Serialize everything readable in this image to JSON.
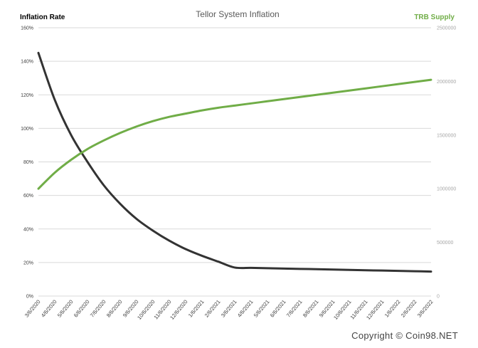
{
  "copyright": "Copyright © Coin98.NET",
  "colors": {
    "inflation": "#333333",
    "supply": "#70ad47",
    "grid": "#d9d9d9"
  },
  "chart_data": {
    "type": "line",
    "title": "Tellor System Inflation",
    "ylabel": "Inflation Rate",
    "y2label": "TRB Supply",
    "ylim": [
      0,
      160
    ],
    "y2lim": [
      0,
      2500000
    ],
    "yticks": [
      "0%",
      "20%",
      "40%",
      "60%",
      "80%",
      "100%",
      "120%",
      "140%",
      "160%"
    ],
    "y2ticks": [
      "0",
      "500000",
      "1000000",
      "1500000",
      "2000000",
      "2500000"
    ],
    "grid": true,
    "categories": [
      "3/6/2020",
      "4/6/2020",
      "5/6/2020",
      "6/6/2020",
      "7/6/2020",
      "8/6/2020",
      "9/6/2020",
      "10/6/2020",
      "11/6/2020",
      "12/6/2020",
      "1/6/2021",
      "2/6/2021",
      "3/6/2021",
      "4/6/2021",
      "5/6/2021",
      "6/6/2021",
      "7/6/2021",
      "8/6/2021",
      "9/6/2021",
      "10/6/2021",
      "11/6/2021",
      "12/6/2021",
      "1/6/2022",
      "2/6/2022",
      "3/6/2022"
    ],
    "series": [
      {
        "name": "Inflation Rate",
        "axis": "left",
        "values": [
          145,
          117,
          96,
          80,
          66,
          55,
          46,
          39,
          33,
          28,
          24,
          20.5,
          17,
          16.8,
          16.6,
          16.4,
          16.2,
          16,
          15.8,
          15.6,
          15.4,
          15.2,
          15,
          14.8,
          14.6
        ]
      },
      {
        "name": "TRB Supply",
        "axis": "right",
        "values": [
          1000000,
          1150000,
          1270000,
          1370000,
          1450000,
          1520000,
          1580000,
          1630000,
          1670000,
          1700000,
          1730000,
          1755000,
          1775000,
          1795000,
          1815000,
          1835000,
          1855000,
          1875000,
          1895000,
          1915000,
          1935000,
          1955000,
          1975000,
          1995000,
          2015000
        ]
      }
    ]
  }
}
